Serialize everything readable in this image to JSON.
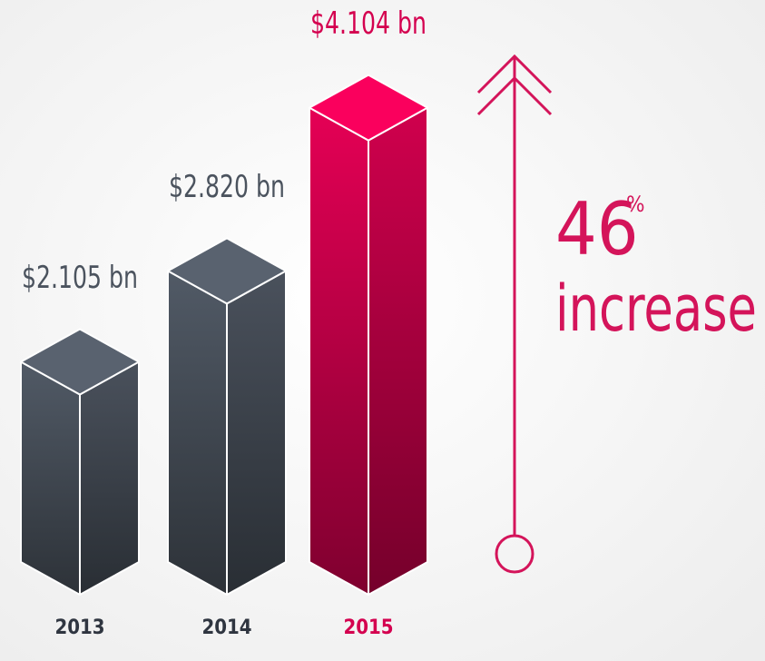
{
  "chart_data": {
    "type": "bar3d",
    "categories": [
      "2013",
      "2014",
      "2015"
    ],
    "values": [
      2.105,
      2.82,
      4.104
    ],
    "value_labels": [
      "$2.105 bn",
      "$2.820 bn",
      "$4.104 bn"
    ],
    "colors": [
      "#4b535e",
      "#4b535e",
      "#d4004f"
    ],
    "annotation": {
      "percent": 46,
      "symbol": "%",
      "label": "increase"
    }
  }
}
